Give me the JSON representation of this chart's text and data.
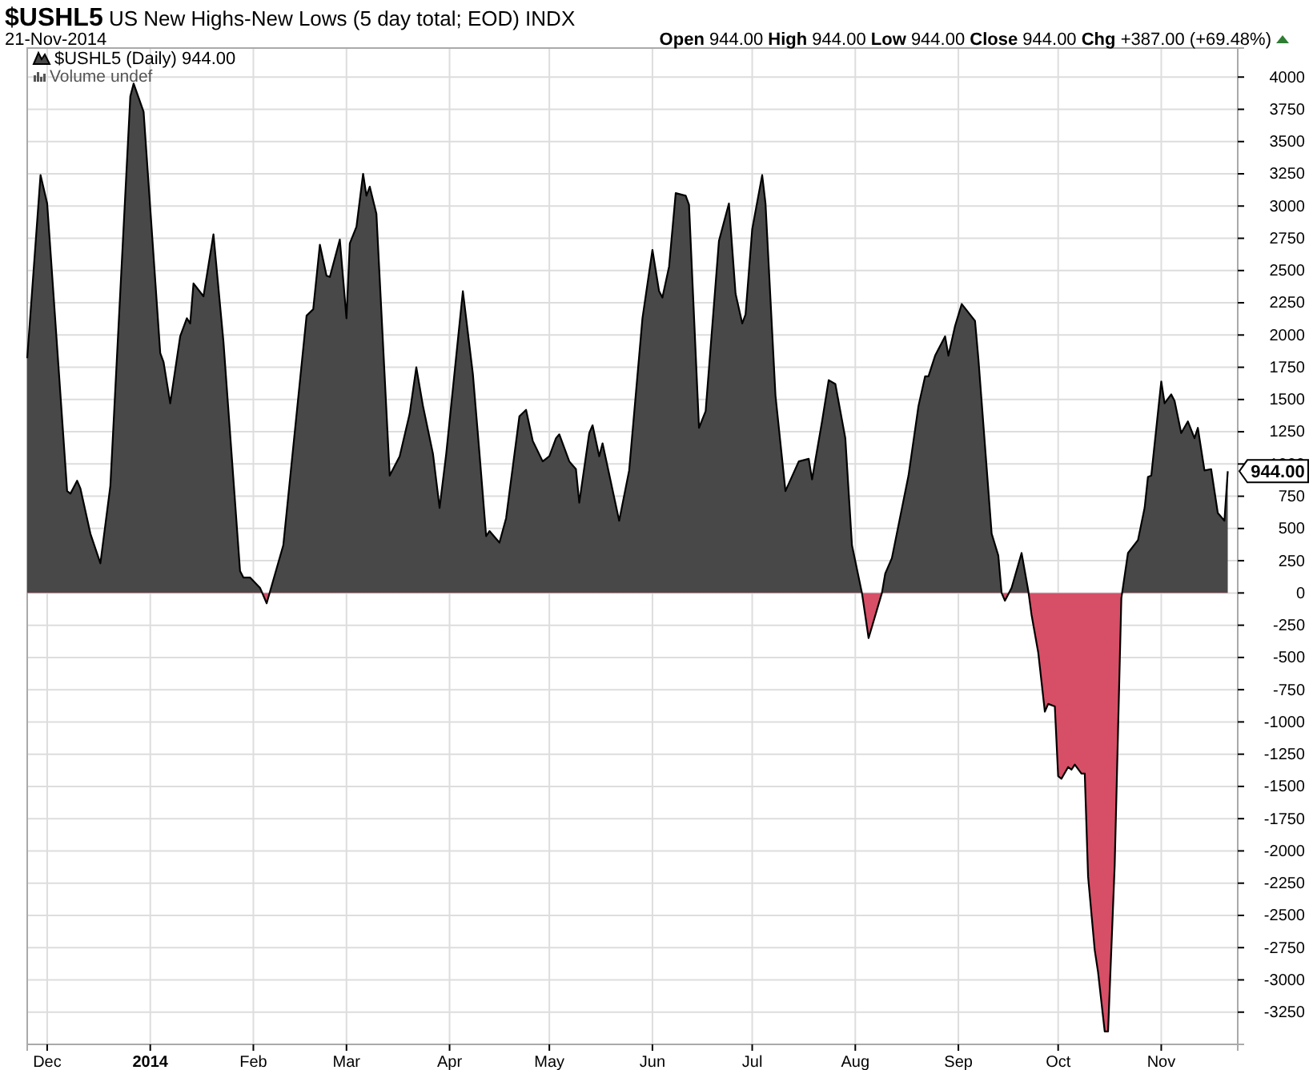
{
  "chart_data": {
    "type": "area",
    "title": "$USHL5 US New Highs-New Lows (5 day total; EOD) INDX",
    "subtitle": "21-Nov-2014",
    "annotations": [
      "Open 944.00  High 944.00  Low 944.00  Close 944.00  Chg +387.00 (+69.48%)",
      "Volume undef",
      {
        "text": "944.00",
        "x": "2014-11-21",
        "y": 944
      }
    ],
    "legend": "top left",
    "grid": true,
    "colors": [
      "#484848",
      "#d64f66"
    ],
    "xlim": [
      "2013-11-25",
      "2014-11-24"
    ],
    "xticks": [
      {
        "value": "2013-12-01",
        "label": "Dec"
      },
      {
        "value": "2014-01-01",
        "label": "2014"
      },
      {
        "value": "2014-02-01",
        "label": "Feb"
      },
      {
        "value": "2014-03-01",
        "label": "Mar"
      },
      {
        "value": "2014-04-01",
        "label": "Apr"
      },
      {
        "value": "2014-05-01",
        "label": "May"
      },
      {
        "value": "2014-06-01",
        "label": "Jun"
      },
      {
        "value": "2014-07-01",
        "label": "Jul"
      },
      {
        "value": "2014-08-01",
        "label": "Aug"
      },
      {
        "value": "2014-09-01",
        "label": "Sep"
      },
      {
        "value": "2014-10-01",
        "label": "Oct"
      },
      {
        "value": "2014-11-01",
        "label": "Nov"
      }
    ],
    "ylim": [
      -3500,
      4225
    ],
    "yticks": [
      -3250,
      -3000,
      -2750,
      -2500,
      -2250,
      -2000,
      -1750,
      -1500,
      -1250,
      -1000,
      -750,
      -500,
      -250,
      0,
      250,
      500,
      750,
      1000,
      1250,
      1500,
      1750,
      2000,
      2250,
      2500,
      2750,
      3000,
      3250,
      3500,
      3750,
      4000
    ],
    "x": [
      "2013-11-25",
      "2013-11-29",
      "2013-12-01",
      "2013-12-07",
      "2013-12-08",
      "2013-12-10",
      "2013-12-11",
      "2013-12-14",
      "2013-12-17",
      "2013-12-20",
      "2013-12-26",
      "2013-12-27",
      "2013-12-30",
      "2014-01-04",
      "2014-01-05",
      "2014-01-07",
      "2014-01-10",
      "2014-01-12",
      "2014-01-13",
      "2014-01-14",
      "2014-01-17",
      "2014-01-20",
      "2014-01-23",
      "2014-01-28",
      "2014-01-29",
      "2014-01-31",
      "2014-02-03",
      "2014-02-05",
      "2014-02-10",
      "2014-02-17",
      "2014-02-19",
      "2014-02-21",
      "2014-02-23",
      "2014-02-24",
      "2014-02-27",
      "2014-03-01",
      "2014-03-02",
      "2014-03-04",
      "2014-03-06",
      "2014-03-07",
      "2014-03-08",
      "2014-03-10",
      "2014-03-14",
      "2014-03-17",
      "2014-03-19",
      "2014-03-20",
      "2014-03-22",
      "2014-03-24",
      "2014-03-27",
      "2014-03-29",
      "2014-03-31",
      "2014-04-05",
      "2014-04-08",
      "2014-04-10",
      "2014-04-12",
      "2014-04-13",
      "2014-04-16",
      "2014-04-18",
      "2014-04-22",
      "2014-04-24",
      "2014-04-26",
      "2014-04-29",
      "2014-05-01",
      "2014-05-03",
      "2014-05-04",
      "2014-05-07",
      "2014-05-09",
      "2014-05-10",
      "2014-05-13",
      "2014-05-14",
      "2014-05-16",
      "2014-05-17",
      "2014-05-22",
      "2014-05-25",
      "2014-05-29",
      "2014-06-01",
      "2014-06-03",
      "2014-06-04",
      "2014-06-06",
      "2014-06-08",
      "2014-06-11",
      "2014-06-12",
      "2014-06-15",
      "2014-06-17",
      "2014-06-21",
      "2014-06-24",
      "2014-06-26",
      "2014-06-28",
      "2014-06-29",
      "2014-07-01",
      "2014-07-04",
      "2014-07-05",
      "2014-07-08",
      "2014-07-11",
      "2014-07-15",
      "2014-07-18",
      "2014-07-19",
      "2014-07-22",
      "2014-07-24",
      "2014-07-26",
      "2014-07-29",
      "2014-07-31",
      "2014-08-03",
      "2014-08-05",
      "2014-08-09",
      "2014-08-10",
      "2014-08-12",
      "2014-08-17",
      "2014-08-20",
      "2014-08-22",
      "2014-08-23",
      "2014-08-25",
      "2014-08-28",
      "2014-08-29",
      "2014-08-31",
      "2014-09-02",
      "2014-09-06",
      "2014-09-07",
      "2014-09-11",
      "2014-09-13",
      "2014-09-14",
      "2014-09-15",
      "2014-09-17",
      "2014-09-20",
      "2014-09-22",
      "2014-09-23",
      "2014-09-25",
      "2014-09-27",
      "2014-09-28",
      "2014-09-30",
      "2014-10-01",
      "2014-10-02",
      "2014-10-04",
      "2014-10-05",
      "2014-10-06",
      "2014-10-08",
      "2014-10-09",
      "2014-10-10",
      "2014-10-12",
      "2014-10-13",
      "2014-10-15",
      "2014-10-16",
      "2014-10-18",
      "2014-10-20",
      "2014-10-22",
      "2014-10-25",
      "2014-10-27",
      "2014-10-28",
      "2014-10-29",
      "2014-11-01",
      "2014-11-02",
      "2014-11-04",
      "2014-11-05",
      "2014-11-07",
      "2014-11-09",
      "2014-11-11",
      "2014-11-12",
      "2014-11-14",
      "2014-11-16",
      "2014-11-18",
      "2014-11-20",
      "2014-11-21"
    ],
    "series": [
      {
        "name": "$USHL5 (Daily) 944.00",
        "color": "#000000",
        "values": [
          1820,
          3240,
          3020,
          790,
          770,
          870,
          810,
          460,
          230,
          830,
          3850,
          3950,
          3730,
          1860,
          1790,
          1470,
          1990,
          2130,
          2090,
          2400,
          2300,
          2780,
          1950,
          170,
          120,
          120,
          40,
          -80,
          370,
          2150,
          2200,
          2700,
          2460,
          2450,
          2740,
          2130,
          2710,
          2840,
          3250,
          3080,
          3150,
          2940,
          910,
          1060,
          1280,
          1390,
          1750,
          1450,
          1080,
          660,
          1080,
          2340,
          1700,
          1080,
          440,
          480,
          390,
          580,
          1370,
          1420,
          1180,
          1020,
          1060,
          1200,
          1230,
          1020,
          960,
          700,
          1240,
          1300,
          1060,
          1160,
          560,
          950,
          2130,
          2660,
          2340,
          2290,
          2530,
          3100,
          3080,
          3010,
          1280,
          1410,
          2730,
          3020,
          2320,
          2090,
          2160,
          2820,
          3240,
          3020,
          1530,
          790,
          1020,
          1040,
          880,
          1330,
          1650,
          1620,
          1200,
          370,
          0,
          -350,
          0,
          150,
          270,
          910,
          1450,
          1680,
          1680,
          1840,
          1990,
          1840,
          2070,
          2240,
          2110,
          1820,
          460,
          290,
          0,
          -60,
          40,
          310,
          20,
          -170,
          -460,
          -920,
          -860,
          -880,
          -1420,
          -1440,
          -1350,
          -1370,
          -1330,
          -1400,
          -1400,
          -2200,
          -2770,
          -2940,
          -3400,
          -3400,
          -2110,
          -40,
          310,
          410,
          660,
          900,
          910,
          1640,
          1470,
          1540,
          1490,
          1240,
          1330,
          1200,
          1280,
          950,
          960,
          620,
          560,
          944
        ]
      }
    ]
  }
}
